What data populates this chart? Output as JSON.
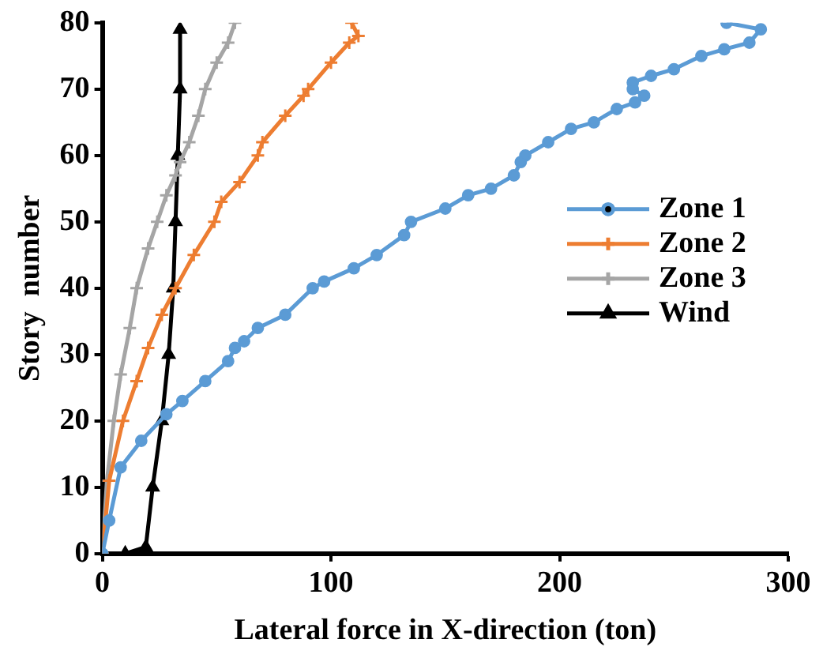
{
  "chart_data": {
    "type": "line",
    "xlabel": "Lateral force in X-direction (ton)",
    "ylabel": "Story  number",
    "xlim": [
      0,
      300
    ],
    "xticks": [
      0,
      100,
      200,
      300
    ],
    "ylim": [
      0,
      80
    ],
    "yticks": [
      0,
      10,
      20,
      30,
      40,
      50,
      60,
      70,
      80
    ],
    "grid": false,
    "legend": "right",
    "line_style": "solid",
    "series": [
      {
        "name": "Zone 1",
        "color": "#5b9bd5",
        "marker": "circle",
        "x": [
          0,
          3,
          8,
          17,
          28,
          35,
          45,
          55,
          58,
          62,
          68,
          80,
          92,
          97,
          110,
          120,
          132,
          135,
          150,
          160,
          170,
          180,
          183,
          185,
          195,
          205,
          215,
          225,
          233,
          237,
          232,
          232,
          240,
          250,
          262,
          272,
          283,
          288,
          273
        ],
        "values": [
          0,
          5,
          13,
          17,
          21,
          23,
          26,
          29,
          31,
          32,
          34,
          36,
          40,
          41,
          43,
          45,
          48,
          50,
          52,
          54,
          55,
          57,
          59,
          60,
          62,
          64,
          65,
          67,
          68,
          69,
          70,
          71,
          72,
          73,
          75,
          76,
          77,
          79,
          80
        ]
      },
      {
        "name": "Zone 2",
        "color": "#ed7d31",
        "marker": "cross",
        "x": [
          0,
          3,
          9,
          15,
          20,
          26,
          32,
          40,
          49,
          52,
          60,
          68,
          70,
          80,
          88,
          90,
          100,
          108,
          112,
          109
        ],
        "values": [
          0,
          11,
          20,
          26,
          31,
          36,
          40,
          45,
          50,
          53,
          56,
          60,
          62,
          66,
          69,
          70,
          74,
          77,
          78,
          80
        ]
      },
      {
        "name": "Zone 3",
        "color": "#a5a5a5",
        "marker": "cross",
        "x": [
          0,
          2,
          5,
          8,
          12,
          15,
          20,
          24,
          28,
          32,
          34,
          38,
          42,
          45,
          50,
          55,
          58
        ],
        "values": [
          0,
          11,
          20,
          27,
          34,
          40,
          46,
          50,
          54,
          57,
          59,
          62,
          66,
          70,
          74,
          77,
          80
        ]
      },
      {
        "name": "Wind",
        "color": "#000000",
        "marker": "triangle",
        "x": [
          0,
          10,
          19,
          22,
          26,
          29,
          31,
          32,
          33,
          34,
          34
        ],
        "values": [
          0,
          0,
          1,
          10,
          20,
          30,
          40,
          50,
          60,
          70,
          79
        ]
      }
    ]
  }
}
